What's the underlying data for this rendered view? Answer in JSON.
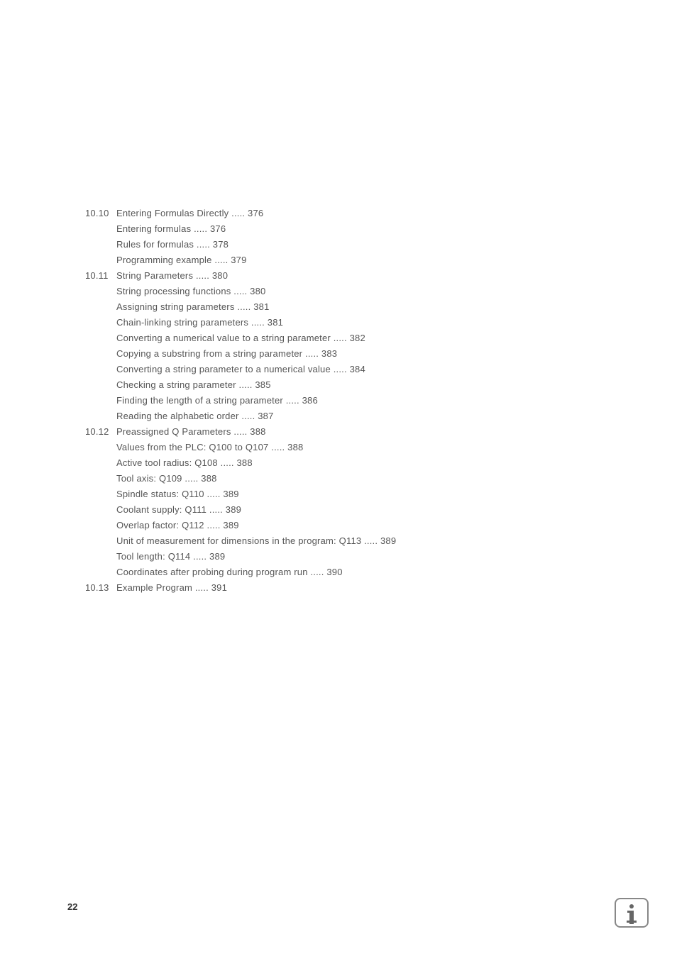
{
  "document": {
    "text_color": "#555555",
    "background_color": "#ffffff",
    "font_size": 13,
    "line_height": 22
  },
  "sections": [
    {
      "number": "10.10",
      "title": "Entering Formulas Directly ..... 376",
      "items": [
        "Entering formulas ..... 376",
        "Rules for formulas ..... 378",
        "Programming example ..... 379"
      ]
    },
    {
      "number": "10.11",
      "title": "String Parameters ..... 380",
      "items": [
        "String processing functions ..... 380",
        "Assigning string parameters ..... 381",
        "Chain-linking string parameters ..... 381",
        "Converting a numerical value to a string parameter  ..... 382",
        "Copying a substring from a string parameter  ..... 383",
        "Converting a string parameter to a numerical value  ..... 384",
        "Checking a string parameter  ..... 385",
        "Finding the length of a string parameter ..... 386",
        "Reading the alphabetic order ..... 387"
      ]
    },
    {
      "number": "10.12",
      "title": "Preassigned Q Parameters ..... 388",
      "items": [
        "Values from the PLC: Q100 to Q107 ..... 388",
        "Active tool radius: Q108 ..... 388",
        "Tool axis: Q109 ..... 388",
        "Spindle status: Q110 ..... 389",
        "Coolant supply: Q111 ..... 389",
        "Overlap factor: Q112 ..... 389",
        "Unit of measurement for dimensions in the program: Q113 ..... 389",
        "Tool length: Q114 ..... 389",
        "Coordinates after probing during program run ..... 390"
      ]
    },
    {
      "number": "10.13",
      "title": "Example Program ..... 391",
      "items": []
    }
  ],
  "page_number": "22"
}
